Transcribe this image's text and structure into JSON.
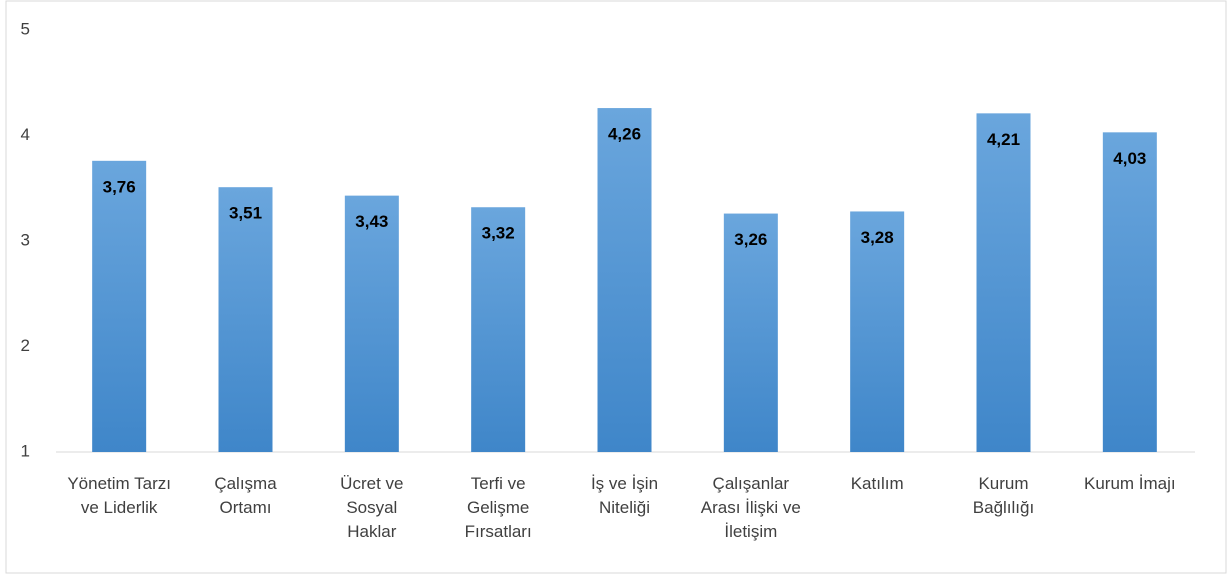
{
  "chart_data": {
    "type": "bar",
    "categories": [
      "Yönetim Tarzı ve Liderlik",
      "Çalışma Ortamı",
      "Ücret ve Sosyal Haklar",
      "Terfi ve Gelişme Fırsatları",
      "İş ve İşin Niteliği",
      "Çalışanlar Arası İlişki ve İletişim",
      "Katılım",
      "Kurum Bağlılığı",
      "Kurum İmajı"
    ],
    "values": [
      3.76,
      3.51,
      3.43,
      3.32,
      4.26,
      3.26,
      3.28,
      4.21,
      4.03
    ],
    "value_labels": [
      "3,76",
      "3,51",
      "3,43",
      "3,32",
      "4,26",
      "3,26",
      "3,28",
      "4,21",
      "4,03"
    ],
    "color": "#5b9bd5",
    "ylim": [
      1,
      5
    ],
    "yticks": [
      1,
      2,
      3,
      4,
      5
    ],
    "grid": false
  }
}
